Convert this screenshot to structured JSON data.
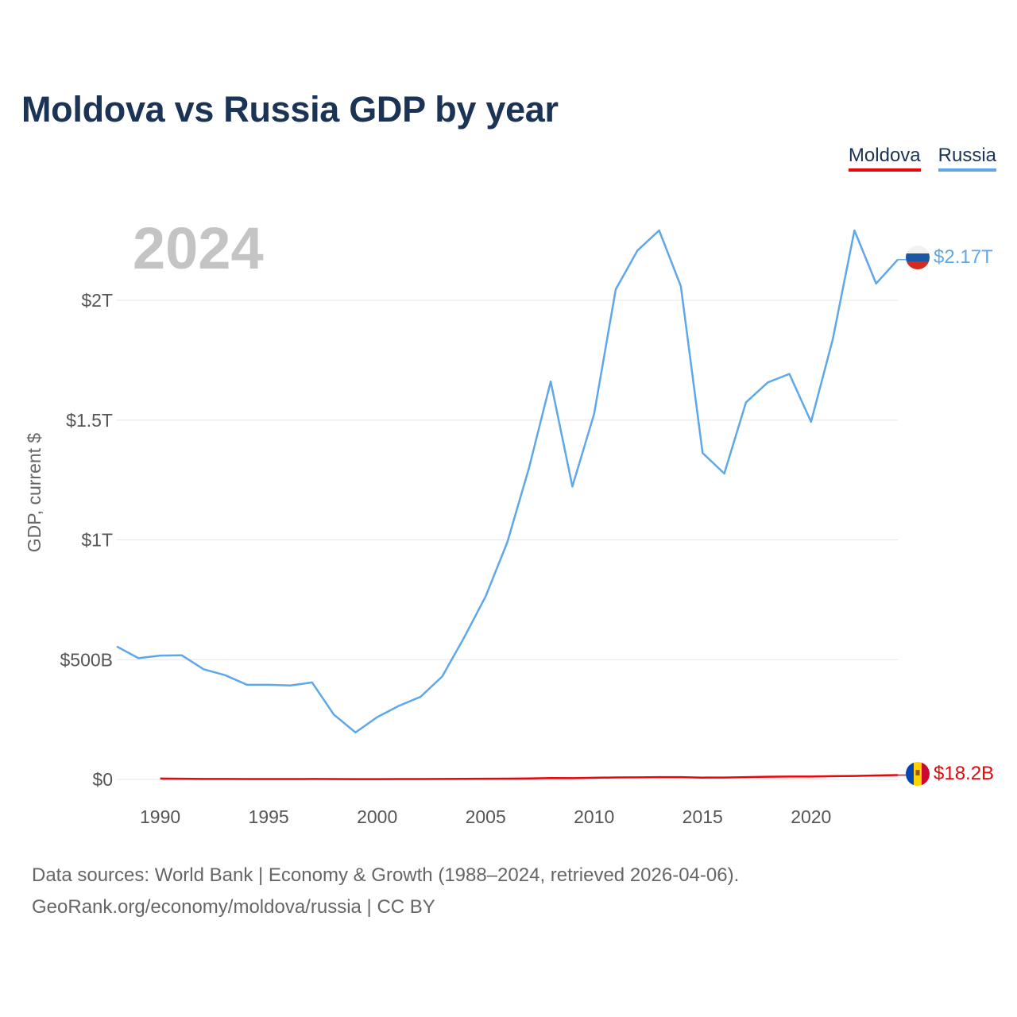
{
  "title": "Moldova vs Russia GDP by year",
  "legend": [
    {
      "name": "Moldova",
      "color": "#e8060b"
    },
    {
      "name": "Russia",
      "color": "#5ea7e8"
    }
  ],
  "footer": {
    "line1": "Data sources: World Bank | Economy & Growth (1988–2024, retrieved 2026-04-06).",
    "line2": "GeoRank.org/economy/moldova/russia | CC BY"
  },
  "chart_data": {
    "type": "line",
    "title": "Moldova vs Russia GDP by year",
    "year_overlay": "2024",
    "xlabel": "",
    "ylabel": "GDP, current $",
    "xlim": [
      1988,
      2024
    ],
    "ylim": [
      0,
      2300
    ],
    "units": "billions of current US$",
    "x_ticks": [
      1990,
      1995,
      2000,
      2005,
      2010,
      2015,
      2020
    ],
    "x_tick_labels": [
      "1990",
      "1995",
      "2000",
      "2005",
      "2010",
      "2015",
      "2020"
    ],
    "y_ticks": [
      0,
      500,
      1000,
      1500,
      2000
    ],
    "y_tick_labels": [
      "$0",
      "$500B",
      "$1T",
      "$1.5T",
      "$2T"
    ],
    "grid": true,
    "legend_position": "top-right",
    "series": [
      {
        "name": "Moldova",
        "color": "#e8060b",
        "end_label": "$18.2B",
        "flag": "moldova-flag",
        "x": [
          1990,
          1991,
          1992,
          1993,
          1994,
          1995,
          1996,
          1997,
          1998,
          1999,
          2000,
          2001,
          2002,
          2003,
          2004,
          2005,
          2006,
          2007,
          2008,
          2009,
          2010,
          2011,
          2012,
          2013,
          2014,
          2015,
          2016,
          2017,
          2018,
          2019,
          2020,
          2021,
          2022,
          2023,
          2024
        ],
        "values": [
          3.6,
          3.1,
          2.0,
          1.9,
          1.7,
          1.8,
          1.7,
          1.9,
          1.7,
          1.2,
          1.3,
          1.5,
          1.7,
          2.0,
          2.6,
          3.0,
          3.4,
          4.4,
          6.1,
          5.4,
          6.97,
          8.4,
          8.7,
          9.5,
          9.5,
          7.7,
          8.1,
          9.7,
          11.4,
          11.9,
          11.9,
          13.7,
          14.5,
          16.5,
          18.2
        ]
      },
      {
        "name": "Russia",
        "color": "#5ea7e8",
        "end_label": "$2.17T",
        "flag": "russia-flag",
        "x": [
          1988,
          1989,
          1990,
          1991,
          1992,
          1993,
          1994,
          1995,
          1996,
          1997,
          1998,
          1999,
          2000,
          2001,
          2002,
          2003,
          2004,
          2005,
          2006,
          2007,
          2008,
          2009,
          2010,
          2011,
          2012,
          2013,
          2014,
          2015,
          2016,
          2017,
          2018,
          2019,
          2020,
          2021,
          2022,
          2023,
          2024
        ],
        "values": [
          555,
          506,
          517,
          518,
          460,
          435,
          395,
          395,
          392,
          405,
          271,
          196,
          260,
          307,
          345,
          430,
          591,
          764,
          990,
          1300,
          1661,
          1223,
          1525,
          2046,
          2208,
          2292,
          2059,
          1363,
          1277,
          1574,
          1657,
          1693,
          1493,
          1837,
          2292,
          2070,
          2170
        ]
      }
    ]
  }
}
